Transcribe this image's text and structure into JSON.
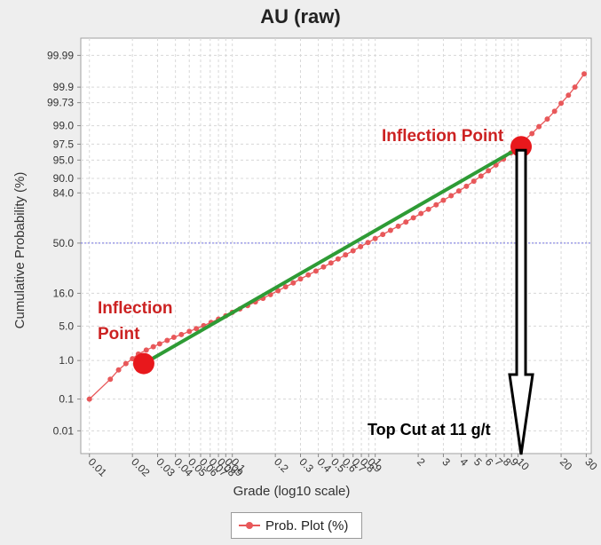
{
  "chart_data": {
    "type": "line",
    "title": "AU (raw)",
    "xlabel": "Grade (log10 scale)",
    "ylabel": "Cumulative Probability (%)",
    "x_scale": "log10",
    "y_scale": "normal-probability",
    "xlim": [
      0.01,
      30
    ],
    "ylim": [
      0.001,
      99.999
    ],
    "grid": true,
    "legend_position": "bottom-center",
    "x_tick_labels": [
      "0.01",
      "0.02",
      "0.03",
      "0.04",
      "0.05",
      "0.06",
      "0.07",
      "0.08",
      "0.09",
      "0.1",
      "0.2",
      "0.3",
      "0.4",
      "0.5",
      "0.6",
      "0.7",
      "0.8",
      "0.9",
      "1",
      "2",
      "3",
      "4",
      "5",
      "6",
      "7",
      "8",
      "9",
      "10",
      "20",
      "30"
    ],
    "y_tick_labels": [
      "0.01",
      "0.1",
      "1.0",
      "5.0",
      "16.0",
      "50.0",
      "84.0",
      "90.0",
      "95.0",
      "97.5",
      "99.0",
      "99.73",
      "99.9",
      "99.99"
    ],
    "reference_line": {
      "y": 50.0,
      "style": "dotted",
      "color": "#6f6fe0"
    },
    "series": [
      {
        "name": "Prob. Plot (%)",
        "color": "#e8585a",
        "x": [
          0.01,
          0.014,
          0.016,
          0.018,
          0.02,
          0.022,
          0.025,
          0.028,
          0.031,
          0.035,
          0.039,
          0.044,
          0.05,
          0.056,
          0.063,
          0.071,
          0.08,
          0.09,
          0.1,
          0.113,
          0.128,
          0.145,
          0.164,
          0.185,
          0.209,
          0.236,
          0.267,
          0.3,
          0.34,
          0.385,
          0.435,
          0.49,
          0.55,
          0.62,
          0.7,
          0.79,
          0.89,
          1.0,
          1.13,
          1.28,
          1.45,
          1.64,
          1.85,
          2.09,
          2.36,
          2.67,
          3.0,
          3.4,
          3.85,
          4.35,
          4.9,
          5.5,
          6.2,
          7.0,
          7.9,
          8.9,
          10.0,
          11.0,
          12.5,
          14.0,
          16.0,
          18.0,
          20.0,
          22.5,
          25.0,
          29.0
        ],
        "y": [
          0.1,
          0.35,
          0.6,
          0.85,
          1.1,
          1.4,
          1.7,
          2.0,
          2.3,
          2.7,
          3.1,
          3.5,
          4.0,
          4.5,
          5.1,
          5.8,
          6.6,
          7.5,
          8.5,
          9.6,
          10.8,
          12.2,
          13.7,
          15.4,
          17.3,
          19.3,
          21.5,
          23.9,
          26.4,
          29.0,
          31.8,
          34.7,
          37.7,
          40.8,
          44.0,
          47.2,
          50.4,
          53.6,
          56.8,
          60.0,
          63.1,
          66.2,
          69.2,
          72.1,
          74.9,
          77.6,
          80.2,
          82.6,
          84.9,
          87.0,
          89.0,
          90.8,
          92.4,
          93.9,
          95.2,
          96.3,
          97.2,
          97.9,
          98.5,
          98.95,
          99.3,
          99.55,
          99.72,
          99.83,
          99.9,
          99.96
        ]
      }
    ],
    "annotations": [
      {
        "text": "Inflection Point",
        "x": 10.5,
        "y": 97.2,
        "color": "#cc2222"
      },
      {
        "text": "Inflection Point",
        "x": 0.024,
        "y": 0.85,
        "color": "#cc2222"
      },
      {
        "text": "Top Cut at 11 g/t",
        "x": 10.5,
        "color": "#000000"
      }
    ],
    "fit_line": {
      "x": [
        0.024,
        10.5
      ],
      "y": [
        0.85,
        97.2
      ],
      "color": "#2e9b35"
    }
  }
}
